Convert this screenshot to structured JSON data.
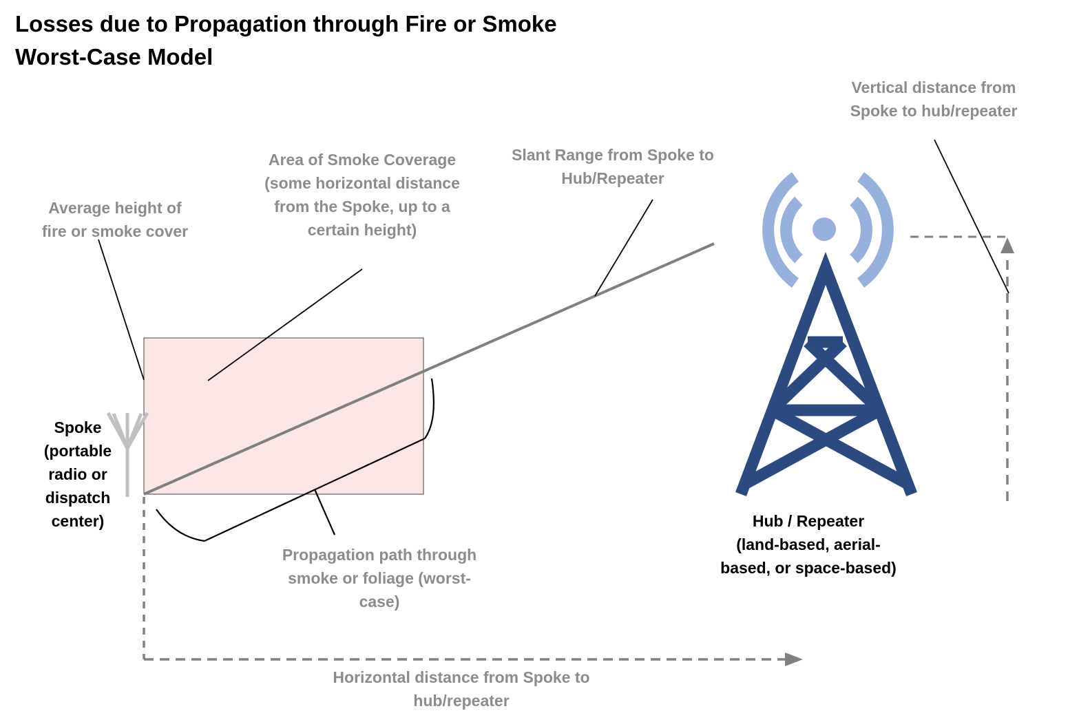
{
  "title": {
    "line1": "Losses due to Propagation through Fire or Smoke",
    "line2": "Worst-Case Model"
  },
  "labels": {
    "avg_height": [
      "Average height of",
      "fire or smoke cover"
    ],
    "smoke_area": [
      "Area of Smoke Coverage",
      "(some horizontal distance",
      "from the Spoke, up to a",
      "certain height)"
    ],
    "slant_range": [
      "Slant Range from Spoke to",
      "Hub/Repeater"
    ],
    "vertical_distance": [
      "Vertical distance from",
      "Spoke to hub/repeater"
    ],
    "spoke": [
      "Spoke",
      "(portable",
      "radio or",
      "dispatch",
      "center)"
    ],
    "hub": [
      "Hub / Repeater",
      "(land-based, aerial-",
      "based, or space-based)"
    ],
    "propagation_path": [
      "Propagation path through",
      "smoke or foliage (worst-",
      "case)"
    ],
    "horizontal_distance": [
      "Horizontal distance from Spoke to",
      "hub/repeater"
    ]
  },
  "colors": {
    "label_gray": "#8c8c8c",
    "smoke_fill": "#fde6e6",
    "tower_blue": "#2b4a7f",
    "signal_blue": "#98b0dc",
    "line_gray": "#808080",
    "antenna_gray": "#c0c0c0"
  },
  "icons": {
    "spoke": "antenna-icon",
    "hub": "radio-tower-icon"
  }
}
